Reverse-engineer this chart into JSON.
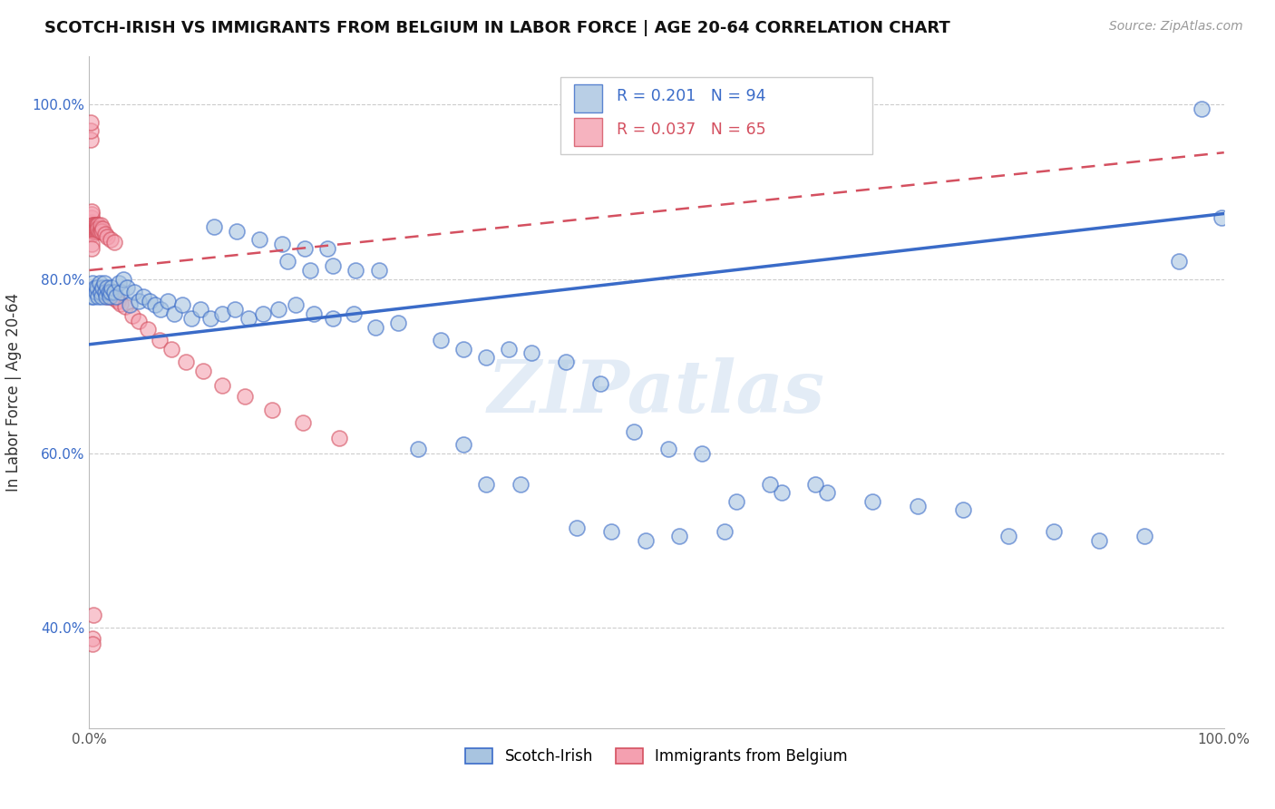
{
  "title": "SCOTCH-IRISH VS IMMIGRANTS FROM BELGIUM IN LABOR FORCE | AGE 20-64 CORRELATION CHART",
  "source": "Source: ZipAtlas.com",
  "ylabel": "In Labor Force | Age 20-64",
  "xlim": [
    0.0,
    1.0
  ],
  "ylim": [
    0.285,
    1.055
  ],
  "y_ticks": [
    0.4,
    0.6,
    0.8,
    1.0
  ],
  "y_tick_labels": [
    "40.0%",
    "60.0%",
    "80.0%",
    "100.0%"
  ],
  "legend_label1": "Scotch-Irish",
  "legend_label2": "Immigrants from Belgium",
  "R1": "0.201",
  "N1": "94",
  "R2": "0.037",
  "N2": "65",
  "color_blue": "#a8c4e0",
  "color_pink": "#f4a0b0",
  "color_blue_dark": "#3a6bc8",
  "color_pink_dark": "#d45060",
  "watermark": "ZIPatlas",
  "blue_trend_x0": 0.0,
  "blue_trend_y0": 0.725,
  "blue_trend_x1": 1.0,
  "blue_trend_y1": 0.875,
  "pink_trend_x0": 0.0,
  "pink_trend_y0": 0.81,
  "pink_trend_x1": 1.0,
  "pink_trend_y1": 0.945,
  "blue_x": [
    0.002,
    0.003,
    0.004,
    0.005,
    0.006,
    0.007,
    0.008,
    0.009,
    0.01,
    0.011,
    0.012,
    0.013,
    0.014,
    0.015,
    0.016,
    0.017,
    0.018,
    0.019,
    0.02,
    0.022,
    0.024,
    0.026,
    0.028,
    0.03,
    0.033,
    0.036,
    0.04,
    0.044,
    0.048,
    0.053,
    0.058,
    0.063,
    0.069,
    0.075,
    0.082,
    0.09,
    0.098,
    0.107,
    0.117,
    0.128,
    0.14,
    0.153,
    0.167,
    0.182,
    0.198,
    0.215,
    0.233,
    0.252,
    0.272,
    0.175,
    0.195,
    0.215,
    0.235,
    0.255,
    0.11,
    0.13,
    0.15,
    0.17,
    0.19,
    0.21,
    0.31,
    0.33,
    0.35,
    0.37,
    0.39,
    0.42,
    0.45,
    0.48,
    0.51,
    0.54,
    0.57,
    0.61,
    0.65,
    0.69,
    0.73,
    0.77,
    0.81,
    0.85,
    0.89,
    0.93,
    0.96,
    0.98,
    0.6,
    0.64,
    0.29,
    0.33,
    0.35,
    0.38,
    0.43,
    0.46,
    0.49,
    0.52,
    0.56,
    0.998
  ],
  "blue_y": [
    0.78,
    0.795,
    0.78,
    0.79,
    0.785,
    0.79,
    0.78,
    0.795,
    0.785,
    0.78,
    0.79,
    0.795,
    0.785,
    0.78,
    0.79,
    0.785,
    0.78,
    0.785,
    0.79,
    0.785,
    0.78,
    0.795,
    0.785,
    0.8,
    0.79,
    0.77,
    0.785,
    0.775,
    0.78,
    0.775,
    0.77,
    0.765,
    0.775,
    0.76,
    0.77,
    0.755,
    0.765,
    0.755,
    0.76,
    0.765,
    0.755,
    0.76,
    0.765,
    0.77,
    0.76,
    0.755,
    0.76,
    0.745,
    0.75,
    0.82,
    0.81,
    0.815,
    0.81,
    0.81,
    0.86,
    0.855,
    0.845,
    0.84,
    0.835,
    0.835,
    0.73,
    0.72,
    0.71,
    0.72,
    0.715,
    0.705,
    0.68,
    0.625,
    0.605,
    0.6,
    0.545,
    0.555,
    0.555,
    0.545,
    0.54,
    0.535,
    0.505,
    0.51,
    0.5,
    0.505,
    0.82,
    0.995,
    0.565,
    0.565,
    0.605,
    0.61,
    0.565,
    0.565,
    0.515,
    0.51,
    0.5,
    0.505,
    0.51,
    0.87
  ],
  "pink_x": [
    0.001,
    0.001,
    0.001,
    0.002,
    0.002,
    0.002,
    0.002,
    0.002,
    0.003,
    0.003,
    0.003,
    0.003,
    0.003,
    0.003,
    0.004,
    0.004,
    0.004,
    0.004,
    0.005,
    0.005,
    0.005,
    0.005,
    0.006,
    0.006,
    0.006,
    0.007,
    0.007,
    0.008,
    0.008,
    0.008,
    0.009,
    0.01,
    0.01,
    0.011,
    0.012,
    0.014,
    0.016,
    0.019,
    0.022,
    0.012,
    0.014,
    0.016,
    0.018,
    0.02,
    0.022,
    0.025,
    0.028,
    0.032,
    0.038,
    0.044,
    0.052,
    0.062,
    0.072,
    0.085,
    0.1,
    0.117,
    0.137,
    0.161,
    0.188,
    0.22,
    0.002,
    0.002,
    0.003,
    0.003,
    0.004
  ],
  "pink_y": [
    0.96,
    0.97,
    0.98,
    0.86,
    0.865,
    0.87,
    0.875,
    0.878,
    0.86,
    0.855,
    0.862,
    0.858,
    0.855,
    0.852,
    0.858,
    0.855,
    0.86,
    0.862,
    0.855,
    0.858,
    0.862,
    0.858,
    0.855,
    0.862,
    0.858,
    0.862,
    0.858,
    0.855,
    0.862,
    0.858,
    0.855,
    0.858,
    0.862,
    0.855,
    0.858,
    0.852,
    0.848,
    0.845,
    0.842,
    0.788,
    0.782,
    0.78,
    0.785,
    0.78,
    0.778,
    0.775,
    0.772,
    0.768,
    0.758,
    0.752,
    0.742,
    0.73,
    0.72,
    0.705,
    0.695,
    0.678,
    0.665,
    0.65,
    0.635,
    0.618,
    0.84,
    0.835,
    0.388,
    0.382,
    0.415
  ]
}
